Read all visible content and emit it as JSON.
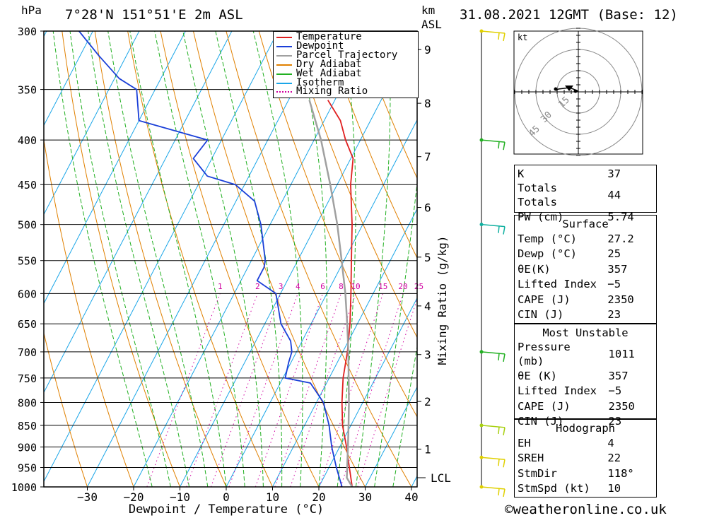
{
  "header": {
    "location": "7°28'N 151°51'E 2m ASL",
    "datetime": "31.08.2021 12GMT (Base: 12)",
    "pressure_unit": "hPa",
    "height_unit": "km",
    "height_unit2": "ASL"
  },
  "chart_data": {
    "type": "line",
    "title": "",
    "xlabel": "Dewpoint / Temperature (°C)",
    "ylabel": "hPa",
    "y2label": "Mixing Ratio (g/kg)",
    "x_ticks": [
      -30,
      -20,
      -10,
      0,
      10,
      20,
      30,
      40
    ],
    "y_ticks": [
      300,
      350,
      400,
      450,
      500,
      550,
      600,
      650,
      700,
      750,
      800,
      850,
      900,
      950,
      1000
    ],
    "y_scale": "log-pressure (inverted)",
    "xlim": [
      -40,
      40
    ],
    "ylim": [
      1000,
      300
    ],
    "skew": "skew-T",
    "km_ticks": [
      {
        "km": 1,
        "p": 905
      },
      {
        "km": 2,
        "p": 798
      },
      {
        "km": 3,
        "p": 705
      },
      {
        "km": 4,
        "p": 620
      },
      {
        "km": 5,
        "p": 545
      },
      {
        "km": 6,
        "p": 478
      },
      {
        "km": 7,
        "p": 418
      },
      {
        "km": 8,
        "p": 363
      },
      {
        "km": 9,
        "p": 315
      }
    ],
    "lcl": {
      "label": "LCL",
      "p": 976
    },
    "mixing_ratio_labels": [
      "1",
      "2",
      "3",
      "4",
      "6",
      "8",
      "10",
      "15",
      "20",
      "25"
    ],
    "legend": {
      "placement": "top-right",
      "entries": [
        {
          "name": "Temperature",
          "color": "#e02020",
          "style": "solid"
        },
        {
          "name": "Dewpoint",
          "color": "#1a3fd8",
          "style": "solid"
        },
        {
          "name": "Parcel Trajectory",
          "color": "#a0a0a0",
          "style": "solid"
        },
        {
          "name": "Dry Adiabat",
          "color": "#e08000",
          "style": "solid"
        },
        {
          "name": "Wet Adiabat",
          "color": "#22b022",
          "style": "solid"
        },
        {
          "name": "Isotherm",
          "color": "#1aa6e8",
          "style": "solid"
        },
        {
          "name": "Mixing Ratio",
          "color": "#d000a0",
          "style": "dotted"
        }
      ]
    },
    "series": [
      {
        "name": "Temperature",
        "points": [
          [
            1000,
            27.2
          ],
          [
            950,
            24.4
          ],
          [
            900,
            21.5
          ],
          [
            850,
            18.2
          ],
          [
            800,
            15.5
          ],
          [
            750,
            13.0
          ],
          [
            700,
            11.0
          ],
          [
            650,
            8.4
          ],
          [
            600,
            5.2
          ],
          [
            550,
            1.6
          ],
          [
            500,
            -2.3
          ],
          [
            450,
            -7.1
          ],
          [
            420,
            -9.5
          ],
          [
            400,
            -13.2
          ],
          [
            380,
            -16.5
          ],
          [
            360,
            -21.5
          ]
        ]
      },
      {
        "name": "Dewpoint",
        "points": [
          [
            1000,
            25.0
          ],
          [
            950,
            21.6
          ],
          [
            900,
            18.3
          ],
          [
            850,
            15.3
          ],
          [
            800,
            11.5
          ],
          [
            760,
            6.5
          ],
          [
            750,
            0.5
          ],
          [
            720,
            -0.5
          ],
          [
            700,
            -1.0
          ],
          [
            680,
            -2.5
          ],
          [
            650,
            -6.5
          ],
          [
            600,
            -11.0
          ],
          [
            580,
            -16.5
          ],
          [
            560,
            -16.5
          ],
          [
            550,
            -17.0
          ],
          [
            500,
            -22.0
          ],
          [
            470,
            -26.0
          ],
          [
            450,
            -32.0
          ],
          [
            440,
            -39.0
          ],
          [
            420,
            -44.0
          ],
          [
            400,
            -43.0
          ],
          [
            380,
            -60.0
          ],
          [
            350,
            -64.0
          ],
          [
            340,
            -69.0
          ],
          [
            320,
            -76.0
          ],
          [
            300,
            -83.0
          ]
        ]
      },
      {
        "name": "Parcel Trajectory",
        "points": [
          [
            1000,
            27.2
          ],
          [
            976,
            25.0
          ],
          [
            900,
            21.8
          ],
          [
            850,
            19.5
          ],
          [
            800,
            17.0
          ],
          [
            750,
            14.2
          ],
          [
            700,
            11.2
          ],
          [
            650,
            7.8
          ],
          [
            600,
            4.0
          ],
          [
            550,
            -0.5
          ],
          [
            500,
            -5.5
          ],
          [
            450,
            -11.5
          ],
          [
            400,
            -18.5
          ],
          [
            360,
            -25.5
          ]
        ]
      }
    ],
    "wind_barbs": [
      {
        "p": 1000,
        "color": "#e0d000"
      },
      {
        "p": 925,
        "color": "#e0d000"
      },
      {
        "p": 850,
        "color": "#a8d010"
      },
      {
        "p": 700,
        "color": "#22b022"
      },
      {
        "p": 500,
        "color": "#10b0a0"
      },
      {
        "p": 400,
        "color": "#22b022"
      },
      {
        "p": 300,
        "color": "#e0d000"
      }
    ]
  },
  "hodograph": {
    "unit": "kt",
    "rings": [
      "15",
      "30",
      "45"
    ]
  },
  "indices": {
    "top": [
      {
        "label": "K",
        "value": "37"
      },
      {
        "label": "Totals Totals",
        "value": "44"
      },
      {
        "label": "PW (cm)",
        "value": "5.74"
      }
    ],
    "surface": {
      "title": "Surface",
      "rows": [
        {
          "label": "Temp (°C)",
          "value": "27.2"
        },
        {
          "label": "Dewp (°C)",
          "value": "25"
        },
        {
          "label": "θE(K)",
          "value": "357"
        },
        {
          "label": "Lifted Index",
          "value": "-5"
        },
        {
          "label": "CAPE (J)",
          "value": "2350"
        },
        {
          "label": "CIN (J)",
          "value": "23"
        }
      ]
    },
    "most_unstable": {
      "title": "Most Unstable",
      "rows": [
        {
          "label": "Pressure (mb)",
          "value": "1011"
        },
        {
          "label": "θE (K)",
          "value": "357"
        },
        {
          "label": "Lifted Index",
          "value": "-5"
        },
        {
          "label": "CAPE (J)",
          "value": "2350"
        },
        {
          "label": "CIN (J)",
          "value": "23"
        }
      ]
    },
    "hodograph": {
      "title": "Hodograph",
      "rows": [
        {
          "label": "EH",
          "value": "4"
        },
        {
          "label": "SREH",
          "value": "22"
        },
        {
          "label": "StmDir",
          "value": "118°"
        },
        {
          "label": "StmSpd (kt)",
          "value": "10"
        }
      ]
    }
  },
  "footer": {
    "copyright": "©weatheronline.co.uk"
  }
}
